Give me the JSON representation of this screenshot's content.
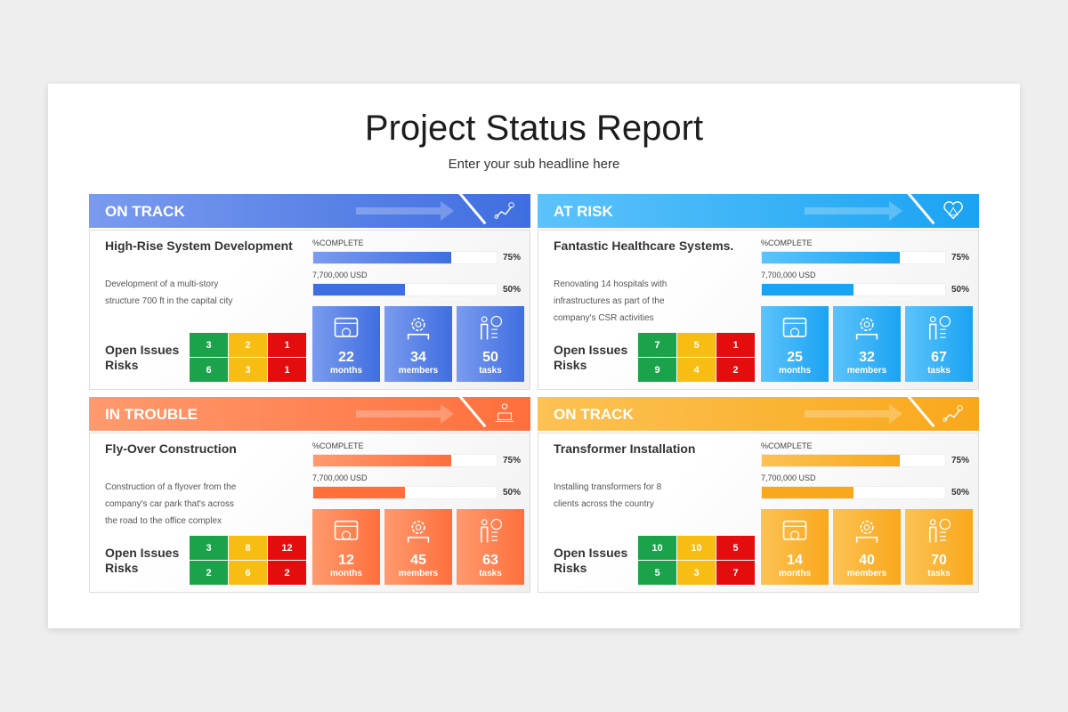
{
  "title": "Project Status Report",
  "subtitle": "Enter your sub headline here",
  "labels": {
    "complete": "%COMPLETE",
    "budget": "7,700,000 USD",
    "open_issues": "Open Issues",
    "risks": "Risks"
  },
  "panels": [
    {
      "status": "ON TRACK",
      "status_icon": "roadmap-icon",
      "color": "#3f6ee0",
      "light": "#7a9bef",
      "name": "High-Rise System Development",
      "desc": "Development of a multi-story structure 700 ft in the capital city",
      "complete": 75,
      "complete_label": "75%",
      "budget_pct": 50,
      "budget_label": "50%",
      "issues": [
        "3",
        "2",
        "1"
      ],
      "risks": [
        "6",
        "3",
        "1"
      ],
      "stats": [
        {
          "value": "22",
          "unit": "months",
          "icon": "calendar-month-icon"
        },
        {
          "value": "34",
          "unit": "members",
          "icon": "team-gear-icon"
        },
        {
          "value": "50",
          "unit": "tasks",
          "icon": "task-checklist-icon"
        }
      ]
    },
    {
      "status": "AT RISK",
      "status_icon": "heart-warning-icon",
      "color": "#1aa3f2",
      "light": "#5cc3fb",
      "name": "Fantastic Healthcare Systems.",
      "desc": "Renovating 14 hospitals with infrastructures as part of the company's CSR activities",
      "complete": 75,
      "complete_label": "75%",
      "budget_pct": 50,
      "budget_label": "50%",
      "issues": [
        "7",
        "5",
        "1"
      ],
      "risks": [
        "9",
        "4",
        "2"
      ],
      "stats": [
        {
          "value": "25",
          "unit": "months",
          "icon": "calendar-month-icon"
        },
        {
          "value": "32",
          "unit": "members",
          "icon": "team-gear-icon"
        },
        {
          "value": "67",
          "unit": "tasks",
          "icon": "task-checklist-icon"
        }
      ]
    },
    {
      "status": "IN TROUBLE",
      "status_icon": "trouble-icon",
      "color": "#ff6f3c",
      "light": "#ff9a6e",
      "name": "Fly-Over Construction",
      "desc": "Construction of a flyover from the company's car park that's across the road to the office complex",
      "complete": 75,
      "complete_label": "75%",
      "budget_pct": 50,
      "budget_label": "50%",
      "issues": [
        "3",
        "8",
        "12"
      ],
      "risks": [
        "2",
        "6",
        "2"
      ],
      "stats": [
        {
          "value": "12",
          "unit": "months",
          "icon": "calendar-month-icon"
        },
        {
          "value": "45",
          "unit": "members",
          "icon": "team-gear-icon"
        },
        {
          "value": "63",
          "unit": "tasks",
          "icon": "task-checklist-icon"
        }
      ]
    },
    {
      "status": "ON TRACK",
      "status_icon": "roadmap-icon",
      "color": "#f9a81b",
      "light": "#fcc254",
      "name": "Transformer Installation",
      "desc": "Installing transformers for 8 clients across the country",
      "complete": 75,
      "complete_label": "75%",
      "budget_pct": 50,
      "budget_label": "50%",
      "issues": [
        "10",
        "10",
        "5"
      ],
      "risks": [
        "5",
        "3",
        "7"
      ],
      "stats": [
        {
          "value": "14",
          "unit": "months",
          "icon": "calendar-month-icon"
        },
        {
          "value": "40",
          "unit": "members",
          "icon": "team-gear-icon"
        },
        {
          "value": "70",
          "unit": "tasks",
          "icon": "task-checklist-icon"
        }
      ]
    }
  ]
}
